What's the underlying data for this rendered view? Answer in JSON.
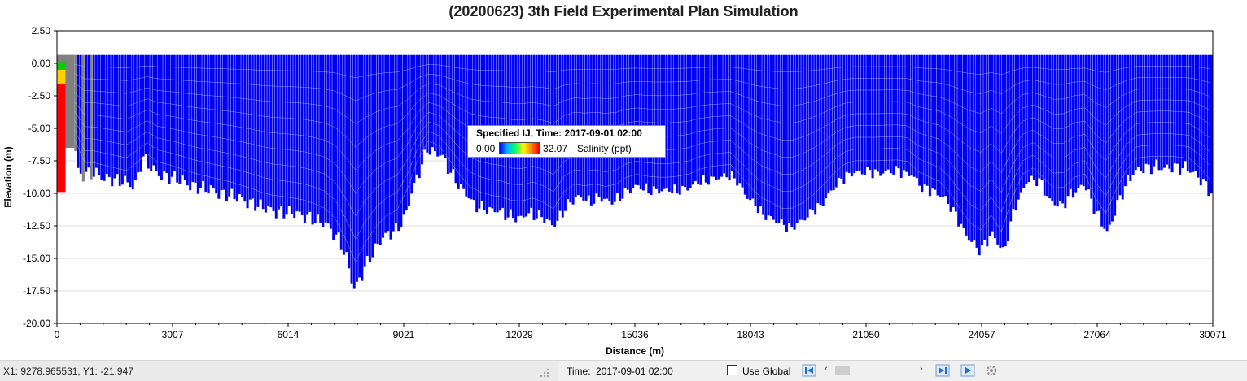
{
  "window": {
    "coord_readout": "X1: 9278.965531, Y1: -21.947",
    "time_label": "Time:",
    "time_value": "2017-09-01 02:00",
    "use_global_label": "Use Global"
  },
  "legend": {
    "title": "Specified IJ, Time: 2017-09-01 02:00",
    "min": "0.00",
    "max": "32.07",
    "variable": "Salinity (ppt)"
  },
  "colors": {
    "cell_fill": "#0000f4",
    "cell_grid": "#cfd2ff",
    "dry_cells": "#808080",
    "gridline": "#dcdcdc",
    "axis": "#000000"
  },
  "chart_data": {
    "type": "area",
    "title": "(20200623) 3th Field Experimental Plan Simulation",
    "xlabel": "Distance (m)",
    "ylabel": "Elevation (m)",
    "xlim": [
      0,
      30071
    ],
    "ylim": [
      -20,
      2.5
    ],
    "x_ticks": [
      "0",
      "3007",
      "6014",
      "9021",
      "12029",
      "15036",
      "18043",
      "21050",
      "24057",
      "27064",
      "30071"
    ],
    "y_ticks": [
      "2.50",
      "0.00",
      "-2.50",
      "-5.00",
      "-7.50",
      "-10.00",
      "-12.50",
      "-15.00",
      "-17.50",
      "-20.00"
    ],
    "water_surface": 0.65,
    "bed_profile": {
      "x": [
        0,
        200,
        450,
        500,
        600,
        800,
        1000,
        1500,
        2000,
        2200,
        2500,
        3000,
        3500,
        4000,
        4500,
        5000,
        5500,
        6000,
        6500,
        7000,
        7300,
        7500,
        7700,
        8000,
        8300,
        8600,
        8800,
        9000,
        9300,
        9600,
        10000,
        10400,
        10800,
        11200,
        11600,
        12000,
        12300,
        12600,
        12900,
        13200,
        13500,
        13800,
        14100,
        14400,
        14700,
        15000,
        15300,
        15600,
        16000,
        16400,
        16800,
        17200,
        17600,
        17900,
        18300,
        18600,
        19000,
        19400,
        19800,
        20200,
        20600,
        21000,
        21400,
        21800,
        22200,
        22500,
        22800,
        23100,
        23400,
        23700,
        24000,
        24300,
        24600,
        24900,
        25200,
        25500,
        25800,
        26100,
        26400,
        26700,
        27000,
        27300,
        27600,
        28000,
        28500,
        29000,
        29500,
        29800,
        30071
      ],
      "y": [
        -6.5,
        -6.5,
        -6.5,
        -8.3,
        -8.6,
        -8.5,
        -8.6,
        -9.0,
        -9.4,
        -7.2,
        -8.4,
        -8.8,
        -9.4,
        -9.8,
        -10.2,
        -10.7,
        -11.3,
        -11.5,
        -11.8,
        -12.5,
        -13.5,
        -15.0,
        -17.5,
        -15.5,
        -14.0,
        -13.0,
        -12.8,
        -12.0,
        -9.0,
        -6.6,
        -7.2,
        -9.3,
        -10.8,
        -11.3,
        -11.5,
        -12.0,
        -11.5,
        -11.8,
        -12.6,
        -11.0,
        -10.3,
        -10.6,
        -10.3,
        -10.8,
        -10.0,
        -9.5,
        -9.7,
        -9.8,
        -9.8,
        -9.6,
        -9.0,
        -8.8,
        -8.7,
        -10.2,
        -11.5,
        -12.0,
        -12.7,
        -12.0,
        -11.0,
        -9.5,
        -8.4,
        -8.4,
        -8.4,
        -8.3,
        -8.5,
        -9.7,
        -9.8,
        -10.5,
        -12.0,
        -13.5,
        -14.5,
        -13.0,
        -14.6,
        -11.0,
        -9.0,
        -9.0,
        -10.5,
        -11.0,
        -10.0,
        -9.2,
        -11.5,
        -13.0,
        -10.5,
        -8.2,
        -8.0,
        -8.0,
        -8.2,
        -9.2,
        -10.3
      ]
    },
    "inflow_salinity_column": {
      "x": [
        0,
        450
      ],
      "bottom": -9.9,
      "note_colors": [
        "#ff0000",
        "#00d000",
        "#ffd000"
      ]
    }
  }
}
